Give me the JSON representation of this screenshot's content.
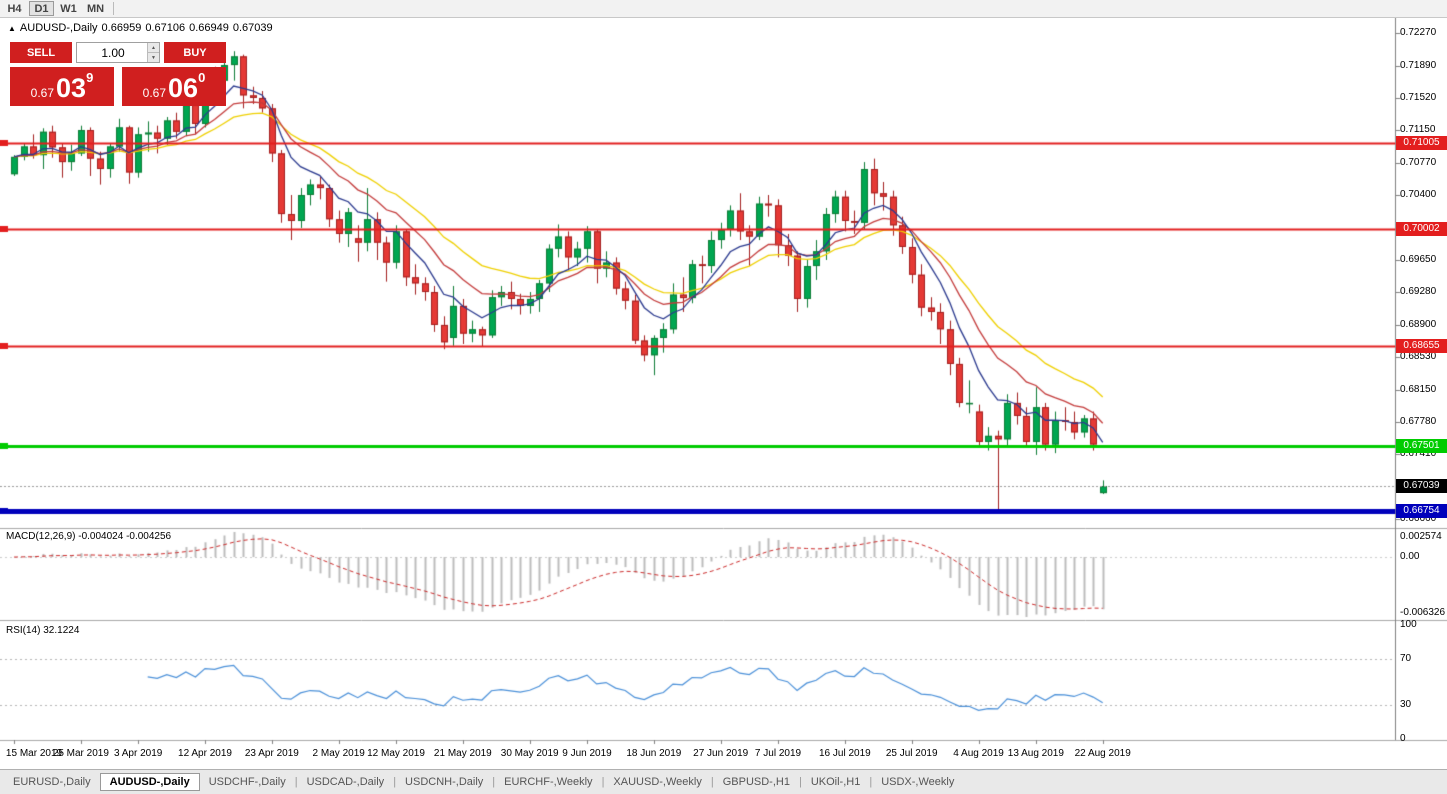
{
  "toolbar": {
    "timeframes": [
      {
        "label": "H4",
        "active": false
      },
      {
        "label": "D1",
        "active": true
      },
      {
        "label": "W1",
        "active": false
      },
      {
        "label": "MN",
        "active": false
      }
    ]
  },
  "info_line": {
    "collapse_icon": "▲",
    "symbol_period": "AUDUSD-,Daily",
    "open": "0.66959",
    "high": "0.67106",
    "low": "0.66949",
    "close": "0.67039"
  },
  "trade_panel": {
    "sell_label": "SELL",
    "buy_label": "BUY",
    "volume": "1.00",
    "sell_price_prefix": "0.67",
    "sell_price_big": "03",
    "sell_price_sup": "9",
    "buy_price_prefix": "0.67",
    "buy_price_big": "06",
    "buy_price_sup": "0",
    "spinner_up_icon": "▲",
    "spinner_down_icon": "▼"
  },
  "colors": {
    "bull": "#00a651",
    "bull_stroke": "#0e7d36",
    "bear": "#e53935",
    "bear_stroke": "#a32020",
    "ma_fast": "#2b3a8f",
    "ma_mid": "#c43c3c",
    "ma_slow": "#efd000",
    "resistance": "#e31e1e",
    "support": "#00cc00",
    "floor_line": "#0000bb",
    "current": "#000000",
    "macd_hist": "#bdbdbd",
    "macd_signal": "#cc2a2a",
    "rsi": "#4a90d9",
    "trade_red": "#d01f1f",
    "axis_line": "#808080",
    "separator": "#a8a8a8"
  },
  "price_axis": {
    "grid_labels": [
      "0.72270",
      "0.71890",
      "0.71520",
      "0.71150",
      "0.70770",
      "0.70400",
      "0.69650",
      "0.69280",
      "0.68900",
      "0.68530",
      "0.68150",
      "0.67780",
      "0.67410",
      "0.66660"
    ],
    "levels": [
      {
        "label": "0.71005",
        "value": 0.71005,
        "color": "#e31e1e",
        "kind": "resistance",
        "width": 2
      },
      {
        "label": "0.70002",
        "value": 0.70002,
        "color": "#e31e1e",
        "kind": "resistance",
        "width": 2
      },
      {
        "label": "0.68655",
        "value": 0.68655,
        "color": "#e31e1e",
        "kind": "resistance",
        "width": 2
      },
      {
        "label": "0.67501",
        "value": 0.67501,
        "color": "#00cc00",
        "kind": "support",
        "width": 3
      },
      {
        "label": "0.67039",
        "value": 0.67039,
        "color": "#000000",
        "kind": "current_price",
        "width": 1
      },
      {
        "label": "0.66754",
        "value": 0.66754,
        "color": "#0000bb",
        "kind": "floor",
        "width": 5
      }
    ]
  },
  "macd_panel": {
    "name": "MACD(12,26,9)",
    "values": "-0.004024 -0.004256",
    "axis_top": "0.002574",
    "axis_zero": "0.00",
    "axis_bottom": "-0.006326"
  },
  "rsi_panel": {
    "name": "RSI(14)",
    "value": "32.1224",
    "axis": [
      "100",
      "70",
      "30",
      "0"
    ]
  },
  "date_axis": {
    "labels": [
      "15 Mar 2019",
      "25 Mar 2019",
      "3 Apr 2019",
      "12 Apr 2019",
      "23 Apr 2019",
      "2 May 2019",
      "12 May 2019",
      "21 May 2019",
      "30 May 2019",
      "9 Jun 2019",
      "18 Jun 2019",
      "27 Jun 2019",
      "7 Jul 2019",
      "16 Jul 2019",
      "25 Jul 2019",
      "4 Aug 2019",
      "13 Aug 2019",
      "22 Aug 2019"
    ],
    "bar_indices": [
      0,
      7,
      13,
      20,
      27,
      34,
      40,
      47,
      54,
      60,
      67,
      74,
      80,
      87,
      94,
      101,
      107,
      114
    ]
  },
  "tabs": [
    {
      "label": "EURUSD-,Daily",
      "active": false
    },
    {
      "label": "AUDUSD-,Daily",
      "active": true
    },
    {
      "label": "USDCHF-,Daily",
      "active": false
    },
    {
      "label": "USDCAD-,Daily",
      "active": false
    },
    {
      "label": "USDCNH-,Daily",
      "active": false
    },
    {
      "label": "EURCHF-,Weekly",
      "active": false
    },
    {
      "label": "XAUUSD-,Weekly",
      "active": false
    },
    {
      "label": "GBPUSD-,H1",
      "active": false
    },
    {
      "label": "UKOil-,H1",
      "active": false
    },
    {
      "label": "USDX-,Weekly",
      "active": false
    }
  ],
  "chart_data": {
    "type": "candlestick",
    "symbol": "AUDUSD-",
    "timeframe": "Daily",
    "y_axis_range": [
      0.6666,
      0.7227
    ],
    "candles": [
      [
        "2019-03-15",
        0.7064,
        0.7086,
        0.7062,
        0.7084
      ],
      [
        "2019-03-18",
        0.7084,
        0.71,
        0.708,
        0.7096
      ],
      [
        "2019-03-19",
        0.7096,
        0.711,
        0.7082,
        0.7086
      ],
      [
        "2019-03-20",
        0.7086,
        0.7117,
        0.707,
        0.7113
      ],
      [
        "2019-03-21",
        0.7113,
        0.712,
        0.7083,
        0.7095
      ],
      [
        "2019-03-22",
        0.7095,
        0.71,
        0.706,
        0.7078
      ],
      [
        "2019-03-25",
        0.7078,
        0.7098,
        0.7068,
        0.7088
      ],
      [
        "2019-03-26",
        0.7088,
        0.712,
        0.7085,
        0.7115
      ],
      [
        "2019-03-27",
        0.7115,
        0.7118,
        0.7062,
        0.7082
      ],
      [
        "2019-03-28",
        0.7082,
        0.709,
        0.7052,
        0.707
      ],
      [
        "2019-03-29",
        0.707,
        0.71,
        0.706,
        0.7096
      ],
      [
        "2019-04-01",
        0.7096,
        0.7128,
        0.709,
        0.7118
      ],
      [
        "2019-04-02",
        0.7118,
        0.712,
        0.7053,
        0.7066
      ],
      [
        "2019-04-03",
        0.7066,
        0.7118,
        0.706,
        0.711
      ],
      [
        "2019-04-04",
        0.711,
        0.7125,
        0.709,
        0.7112
      ],
      [
        "2019-04-05",
        0.7112,
        0.712,
        0.7088,
        0.7105
      ],
      [
        "2019-04-08",
        0.7105,
        0.713,
        0.7098,
        0.7126
      ],
      [
        "2019-04-09",
        0.7126,
        0.7135,
        0.7105,
        0.7113
      ],
      [
        "2019-04-10",
        0.7113,
        0.7148,
        0.7108,
        0.7144
      ],
      [
        "2019-04-11",
        0.7144,
        0.715,
        0.711,
        0.7122
      ],
      [
        "2019-04-12",
        0.7122,
        0.718,
        0.7118,
        0.7175
      ],
      [
        "2019-04-15",
        0.7175,
        0.7188,
        0.7155,
        0.7172
      ],
      [
        "2019-04-16",
        0.7172,
        0.7196,
        0.716,
        0.719
      ],
      [
        "2019-04-17",
        0.719,
        0.7206,
        0.7172,
        0.72
      ],
      [
        "2019-04-18",
        0.72,
        0.7202,
        0.714,
        0.7155
      ],
      [
        "2019-04-19",
        0.7155,
        0.7165,
        0.7145,
        0.7152
      ],
      [
        "2019-04-22",
        0.7152,
        0.716,
        0.7135,
        0.714
      ],
      [
        "2019-04-23",
        0.714,
        0.7145,
        0.7078,
        0.7088
      ],
      [
        "2019-04-24",
        0.7088,
        0.7092,
        0.7008,
        0.7018
      ],
      [
        "2019-04-25",
        0.7018,
        0.704,
        0.6988,
        0.701
      ],
      [
        "2019-04-26",
        0.701,
        0.7048,
        0.7002,
        0.704
      ],
      [
        "2019-04-29",
        0.704,
        0.7058,
        0.7028,
        0.7052
      ],
      [
        "2019-04-30",
        0.7052,
        0.7062,
        0.7035,
        0.7048
      ],
      [
        "2019-05-01",
        0.7048,
        0.7052,
        0.7003,
        0.7012
      ],
      [
        "2019-05-02",
        0.7012,
        0.7022,
        0.6985,
        0.6995
      ],
      [
        "2019-05-03",
        0.6995,
        0.7025,
        0.698,
        0.702
      ],
      [
        "2019-05-06",
        0.699,
        0.7005,
        0.6963,
        0.6985
      ],
      [
        "2019-05-07",
        0.6985,
        0.7048,
        0.6975,
        0.7012
      ],
      [
        "2019-05-08",
        0.7012,
        0.702,
        0.6965,
        0.6985
      ],
      [
        "2019-05-09",
        0.6985,
        0.6992,
        0.694,
        0.6962
      ],
      [
        "2019-05-10",
        0.6962,
        0.7005,
        0.6955,
        0.6998
      ],
      [
        "2019-05-13",
        0.6998,
        0.7,
        0.6935,
        0.6945
      ],
      [
        "2019-05-14",
        0.6945,
        0.696,
        0.6925,
        0.6938
      ],
      [
        "2019-05-15",
        0.6938,
        0.6945,
        0.6918,
        0.6928
      ],
      [
        "2019-05-16",
        0.6928,
        0.6935,
        0.6882,
        0.689
      ],
      [
        "2019-05-17",
        0.689,
        0.69,
        0.6862,
        0.687
      ],
      [
        "2019-05-20",
        0.6875,
        0.6935,
        0.6866,
        0.6912
      ],
      [
        "2019-05-21",
        0.6912,
        0.692,
        0.6868,
        0.688
      ],
      [
        "2019-05-22",
        0.688,
        0.6895,
        0.687,
        0.6885
      ],
      [
        "2019-05-23",
        0.6885,
        0.6888,
        0.6865,
        0.6878
      ],
      [
        "2019-05-24",
        0.6878,
        0.693,
        0.6875,
        0.6922
      ],
      [
        "2019-05-27",
        0.6922,
        0.6935,
        0.6912,
        0.6928
      ],
      [
        "2019-05-28",
        0.6928,
        0.694,
        0.6908,
        0.692
      ],
      [
        "2019-05-29",
        0.692,
        0.6926,
        0.6902,
        0.6912
      ],
      [
        "2019-05-30",
        0.6912,
        0.6928,
        0.6903,
        0.692
      ],
      [
        "2019-05-31",
        0.692,
        0.6942,
        0.6905,
        0.6938
      ],
      [
        "2019-06-03",
        0.6938,
        0.6983,
        0.6928,
        0.6978
      ],
      [
        "2019-06-04",
        0.6978,
        0.7006,
        0.6968,
        0.6992
      ],
      [
        "2019-06-05",
        0.6992,
        0.6998,
        0.6953,
        0.6968
      ],
      [
        "2019-06-06",
        0.6968,
        0.6986,
        0.6958,
        0.6978
      ],
      [
        "2019-06-07",
        0.6978,
        0.7004,
        0.6962,
        0.6998
      ],
      [
        "2019-06-10",
        0.6998,
        0.7,
        0.6938,
        0.6955
      ],
      [
        "2019-06-11",
        0.6955,
        0.6975,
        0.6945,
        0.6962
      ],
      [
        "2019-06-12",
        0.6962,
        0.6968,
        0.6925,
        0.6932
      ],
      [
        "2019-06-13",
        0.6932,
        0.694,
        0.6908,
        0.6918
      ],
      [
        "2019-06-14",
        0.6918,
        0.6925,
        0.6868,
        0.6872
      ],
      [
        "2019-06-17",
        0.6872,
        0.6878,
        0.6848,
        0.6855
      ],
      [
        "2019-06-18",
        0.6855,
        0.6878,
        0.6832,
        0.6875
      ],
      [
        "2019-06-19",
        0.6875,
        0.6892,
        0.6858,
        0.6885
      ],
      [
        "2019-06-20",
        0.6885,
        0.6938,
        0.688,
        0.6925
      ],
      [
        "2019-06-21",
        0.6925,
        0.6945,
        0.6905,
        0.6921
      ],
      [
        "2019-06-24",
        0.6921,
        0.6965,
        0.6915,
        0.696
      ],
      [
        "2019-06-25",
        0.696,
        0.697,
        0.6938,
        0.6958
      ],
      [
        "2019-06-26",
        0.6958,
        0.6998,
        0.695,
        0.6988
      ],
      [
        "2019-06-27",
        0.6988,
        0.7008,
        0.6978,
        0.7
      ],
      [
        "2019-06-28",
        0.7,
        0.7028,
        0.6992,
        0.7022
      ],
      [
        "2019-07-01",
        0.7022,
        0.7042,
        0.6988,
        0.6998
      ],
      [
        "2019-07-02",
        0.6998,
        0.7005,
        0.6958,
        0.6992
      ],
      [
        "2019-07-03",
        0.6992,
        0.7038,
        0.6988,
        0.703
      ],
      [
        "2019-07-04",
        0.703,
        0.704,
        0.7015,
        0.7028
      ],
      [
        "2019-07-05",
        0.7028,
        0.7035,
        0.6968,
        0.6982
      ],
      [
        "2019-07-08",
        0.6982,
        0.6995,
        0.6958,
        0.697
      ],
      [
        "2019-07-09",
        0.697,
        0.6975,
        0.6905,
        0.692
      ],
      [
        "2019-07-10",
        0.692,
        0.6965,
        0.691,
        0.6958
      ],
      [
        "2019-07-11",
        0.6958,
        0.6988,
        0.6942,
        0.6975
      ],
      [
        "2019-07-12",
        0.6975,
        0.7025,
        0.6965,
        0.7018
      ],
      [
        "2019-07-15",
        0.7018,
        0.7045,
        0.7008,
        0.7038
      ],
      [
        "2019-07-16",
        0.7038,
        0.7045,
        0.6998,
        0.701
      ],
      [
        "2019-07-17",
        0.701,
        0.7022,
        0.6995,
        0.7008
      ],
      [
        "2019-07-18",
        0.7008,
        0.7078,
        0.7,
        0.707
      ],
      [
        "2019-07-19",
        0.707,
        0.7082,
        0.7028,
        0.7042
      ],
      [
        "2019-07-22",
        0.7042,
        0.7055,
        0.7022,
        0.7038
      ],
      [
        "2019-07-23",
        0.7038,
        0.7045,
        0.6993,
        0.7005
      ],
      [
        "2019-07-24",
        0.7005,
        0.7015,
        0.6972,
        0.698
      ],
      [
        "2019-07-25",
        0.698,
        0.699,
        0.6938,
        0.6948
      ],
      [
        "2019-07-26",
        0.6948,
        0.696,
        0.69,
        0.691
      ],
      [
        "2019-07-29",
        0.691,
        0.6922,
        0.6895,
        0.6905
      ],
      [
        "2019-07-30",
        0.6905,
        0.6915,
        0.6868,
        0.6885
      ],
      [
        "2019-07-31",
        0.6885,
        0.6895,
        0.6832,
        0.6845
      ],
      [
        "2019-08-01",
        0.6845,
        0.6852,
        0.6795,
        0.68
      ],
      [
        "2019-08-02",
        0.68,
        0.6826,
        0.6788,
        0.68
      ],
      [
        "2019-08-05",
        0.679,
        0.6798,
        0.6748,
        0.6755
      ],
      [
        "2019-08-06",
        0.6755,
        0.6772,
        0.6745,
        0.6762
      ],
      [
        "2019-08-07",
        0.6762,
        0.6768,
        0.6677,
        0.6758
      ],
      [
        "2019-08-08",
        0.6758,
        0.681,
        0.675,
        0.68
      ],
      [
        "2019-08-09",
        0.68,
        0.6812,
        0.6775,
        0.6785
      ],
      [
        "2019-08-12",
        0.6785,
        0.6795,
        0.6748,
        0.6755
      ],
      [
        "2019-08-13",
        0.6755,
        0.6818,
        0.674,
        0.6795
      ],
      [
        "2019-08-14",
        0.6795,
        0.68,
        0.6745,
        0.6752
      ],
      [
        "2019-08-15",
        0.6752,
        0.679,
        0.6742,
        0.678
      ],
      [
        "2019-08-16",
        0.678,
        0.6795,
        0.6768,
        0.6778
      ],
      [
        "2019-08-19",
        0.6778,
        0.679,
        0.6758,
        0.6766
      ],
      [
        "2019-08-20",
        0.6766,
        0.6786,
        0.676,
        0.6782
      ],
      [
        "2019-08-21",
        0.6782,
        0.679,
        0.6745,
        0.6752
      ],
      [
        "2019-08-22",
        0.66959,
        0.67106,
        0.66949,
        0.67039
      ]
    ]
  }
}
